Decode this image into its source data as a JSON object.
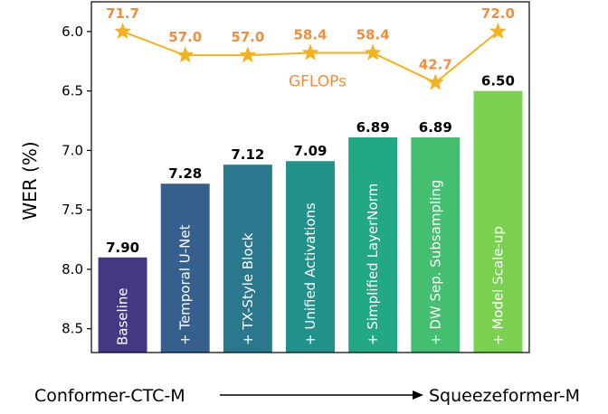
{
  "chart_data": {
    "type": "bar",
    "ylabel": "WER (%)",
    "ylim": [
      8.7,
      5.75
    ],
    "y_inverted": true,
    "yticks": [
      "6.0",
      "6.5",
      "7.0",
      "7.5",
      "8.0",
      "8.5"
    ],
    "categories": [
      "Baseline",
      "+ Temporal U-Net",
      "+ TX-Style Block",
      "+ Unified Activations",
      "+ Simplified LayerNorm",
      "+ DW Sep. Subsampling",
      "+ Model Scale-up"
    ],
    "values": [
      7.9,
      7.28,
      7.12,
      7.09,
      6.89,
      6.89,
      6.5
    ],
    "value_labels": [
      "7.90",
      "7.28",
      "7.12",
      "7.09",
      "6.89",
      "6.89",
      "6.50"
    ],
    "bar_colors": [
      "#453882",
      "#355f8d",
      "#2a788e",
      "#21918c",
      "#22a884",
      "#44bf70",
      "#7ad151"
    ],
    "gflops": {
      "name": "GFLOPs",
      "values": [
        71.7,
        57.0,
        57.0,
        58.4,
        58.4,
        42.7,
        72.0
      ],
      "labels": [
        "71.7",
        "57.0",
        "57.0",
        "58.4",
        "58.4",
        "42.7",
        "72.0"
      ],
      "marker_wer_positions": [
        6.0,
        6.2,
        6.2,
        6.18,
        6.18,
        6.43,
        6.0
      ],
      "color": "#f5b21f",
      "label_color": "#ef8e3c"
    },
    "footer": {
      "start": "Conformer-CTC-M",
      "end": "Squeezeformer-M"
    }
  }
}
